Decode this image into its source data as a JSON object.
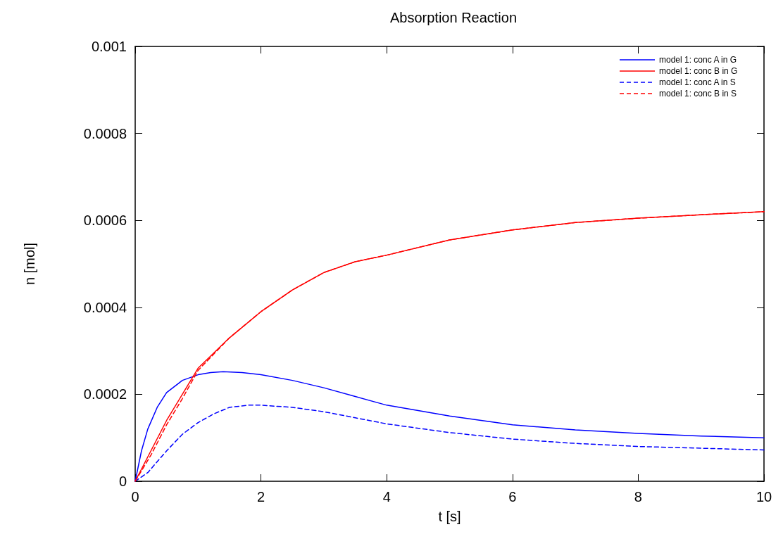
{
  "chart_data": {
    "type": "line",
    "title": "Absorption Reaction",
    "xlabel": "t [s]",
    "ylabel": "n [mol]",
    "xlim": [
      0,
      10
    ],
    "xticks": [
      0,
      2,
      4,
      6,
      8,
      10
    ],
    "ylim": [
      0,
      0.001
    ],
    "yticks": [
      0,
      0.0002,
      0.0004,
      0.0006,
      0.0008,
      0.001
    ],
    "grid": false,
    "legend": "top right",
    "marker": "none",
    "series": [
      {
        "name": "model 1: conc A in G",
        "color": "#0000ff",
        "line_style": "solid",
        "x": [
          0,
          0.1,
          0.2,
          0.35,
          0.5,
          0.75,
          1,
          1.2,
          1.4,
          1.7,
          2,
          2.5,
          3,
          3.5,
          4,
          5,
          6,
          7,
          8,
          9,
          10
        ],
        "values": [
          0,
          7e-05,
          0.00012,
          0.00017,
          0.000204,
          0.000232,
          0.000245,
          0.00025,
          0.000252,
          0.00025,
          0.000245,
          0.000232,
          0.000215,
          0.000195,
          0.000175,
          0.00015,
          0.00013,
          0.000118,
          0.00011,
          0.000104,
          0.0001
        ]
      },
      {
        "name": "model 1: conc B in G",
        "color": "#ff0000",
        "line_style": "solid",
        "x": [
          0,
          0.25,
          0.5,
          0.75,
          1,
          1.5,
          2,
          2.5,
          3,
          3.5,
          4,
          5,
          6,
          7,
          8,
          9,
          10
        ],
        "values": [
          0,
          7e-05,
          0.00014,
          0.0002,
          0.00026,
          0.00033,
          0.00039,
          0.00044,
          0.00048,
          0.000505,
          0.00052,
          0.000555,
          0.000578,
          0.000595,
          0.000605,
          0.000613,
          0.00062
        ]
      },
      {
        "name": "model 1: conc A in S",
        "color": "#0000ff",
        "line_style": "dashed",
        "x": [
          0,
          0.2,
          0.5,
          0.75,
          1,
          1.25,
          1.5,
          1.8,
          2,
          2.5,
          3,
          3.5,
          4,
          5,
          6,
          7,
          8,
          9,
          10
        ],
        "values": [
          0,
          2e-05,
          7e-05,
          0.000108,
          0.000135,
          0.000155,
          0.00017,
          0.000175,
          0.000175,
          0.00017,
          0.00016,
          0.000146,
          0.000132,
          0.000112,
          9.7e-05,
          8.7e-05,
          8e-05,
          7.6e-05,
          7.2e-05
        ]
      },
      {
        "name": "model 1: conc B in S",
        "color": "#ff0000",
        "line_style": "dashed",
        "x": [
          0,
          0.25,
          0.5,
          0.75,
          1,
          1.5,
          2,
          2.5,
          3,
          3.5,
          4,
          5,
          6,
          7,
          8,
          9,
          10
        ],
        "values": [
          0,
          6e-05,
          0.00013,
          0.00019,
          0.000255,
          0.00033,
          0.00039,
          0.00044,
          0.00048,
          0.000505,
          0.00052,
          0.000555,
          0.000578,
          0.000595,
          0.000605,
          0.000613,
          0.00062
        ]
      }
    ]
  }
}
